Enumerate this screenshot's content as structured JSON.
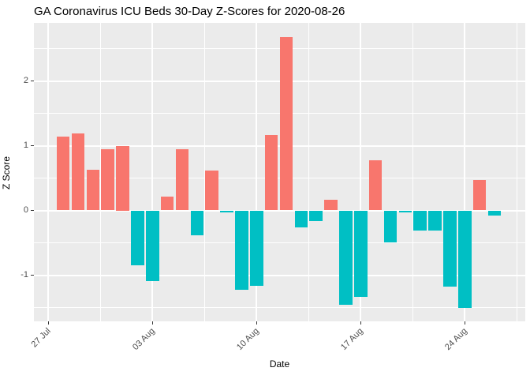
{
  "figure": {
    "title": "GA Coronavirus ICU Beds 30-Day Z-Scores for 2020-08-26"
  },
  "chart_data": {
    "type": "bar",
    "title": "GA Coronavirus ICU Beds 30-Day Z-Scores for 2020-08-26",
    "xlabel": "Date",
    "ylabel": "Z Score",
    "x": [
      "2020-07-28",
      "2020-07-29",
      "2020-07-30",
      "2020-07-31",
      "2020-08-01",
      "2020-08-02",
      "2020-08-03",
      "2020-08-04",
      "2020-08-05",
      "2020-08-06",
      "2020-08-07",
      "2020-08-08",
      "2020-08-09",
      "2020-08-10",
      "2020-08-11",
      "2020-08-12",
      "2020-08-13",
      "2020-08-14",
      "2020-08-15",
      "2020-08-16",
      "2020-08-17",
      "2020-08-18",
      "2020-08-19",
      "2020-08-20",
      "2020-08-21",
      "2020-08-22",
      "2020-08-23",
      "2020-08-24",
      "2020-08-25",
      "2020-08-26"
    ],
    "values": [
      1.14,
      1.19,
      0.63,
      0.95,
      1.0,
      -0.85,
      -1.09,
      0.21,
      0.95,
      -0.38,
      0.62,
      -0.03,
      -1.23,
      -1.16,
      1.17,
      2.68,
      -0.26,
      -0.17,
      0.17,
      -1.46,
      -1.33,
      0.77,
      -0.49,
      -0.03,
      -0.31,
      -0.31,
      -1.18,
      -1.51,
      0.47,
      -0.08
    ],
    "positive_color": "#F8766D",
    "negative_color": "#00BFC4",
    "panel_background": "#EBEBEB",
    "gridline_color": "#FFFFFF",
    "tick_label_color": "#4D4D4D",
    "x_tick_labels": [
      "27 Jul",
      "03 Aug",
      "10 Aug",
      "17 Aug",
      "24 Aug"
    ],
    "x_tick_day_offsets": [
      -1,
      6,
      13,
      20,
      27
    ],
    "x_minor_day_offsets": [
      2.5,
      9.5,
      16.5,
      23.5,
      30.5
    ],
    "y_ticks": [
      -1,
      0,
      1,
      2
    ],
    "y_minor_ticks": [
      -1.5,
      -0.5,
      0.5,
      1.5,
      2.5
    ],
    "ylim": [
      -1.71,
      2.91
    ],
    "grid": "on",
    "legend_position": "none"
  }
}
